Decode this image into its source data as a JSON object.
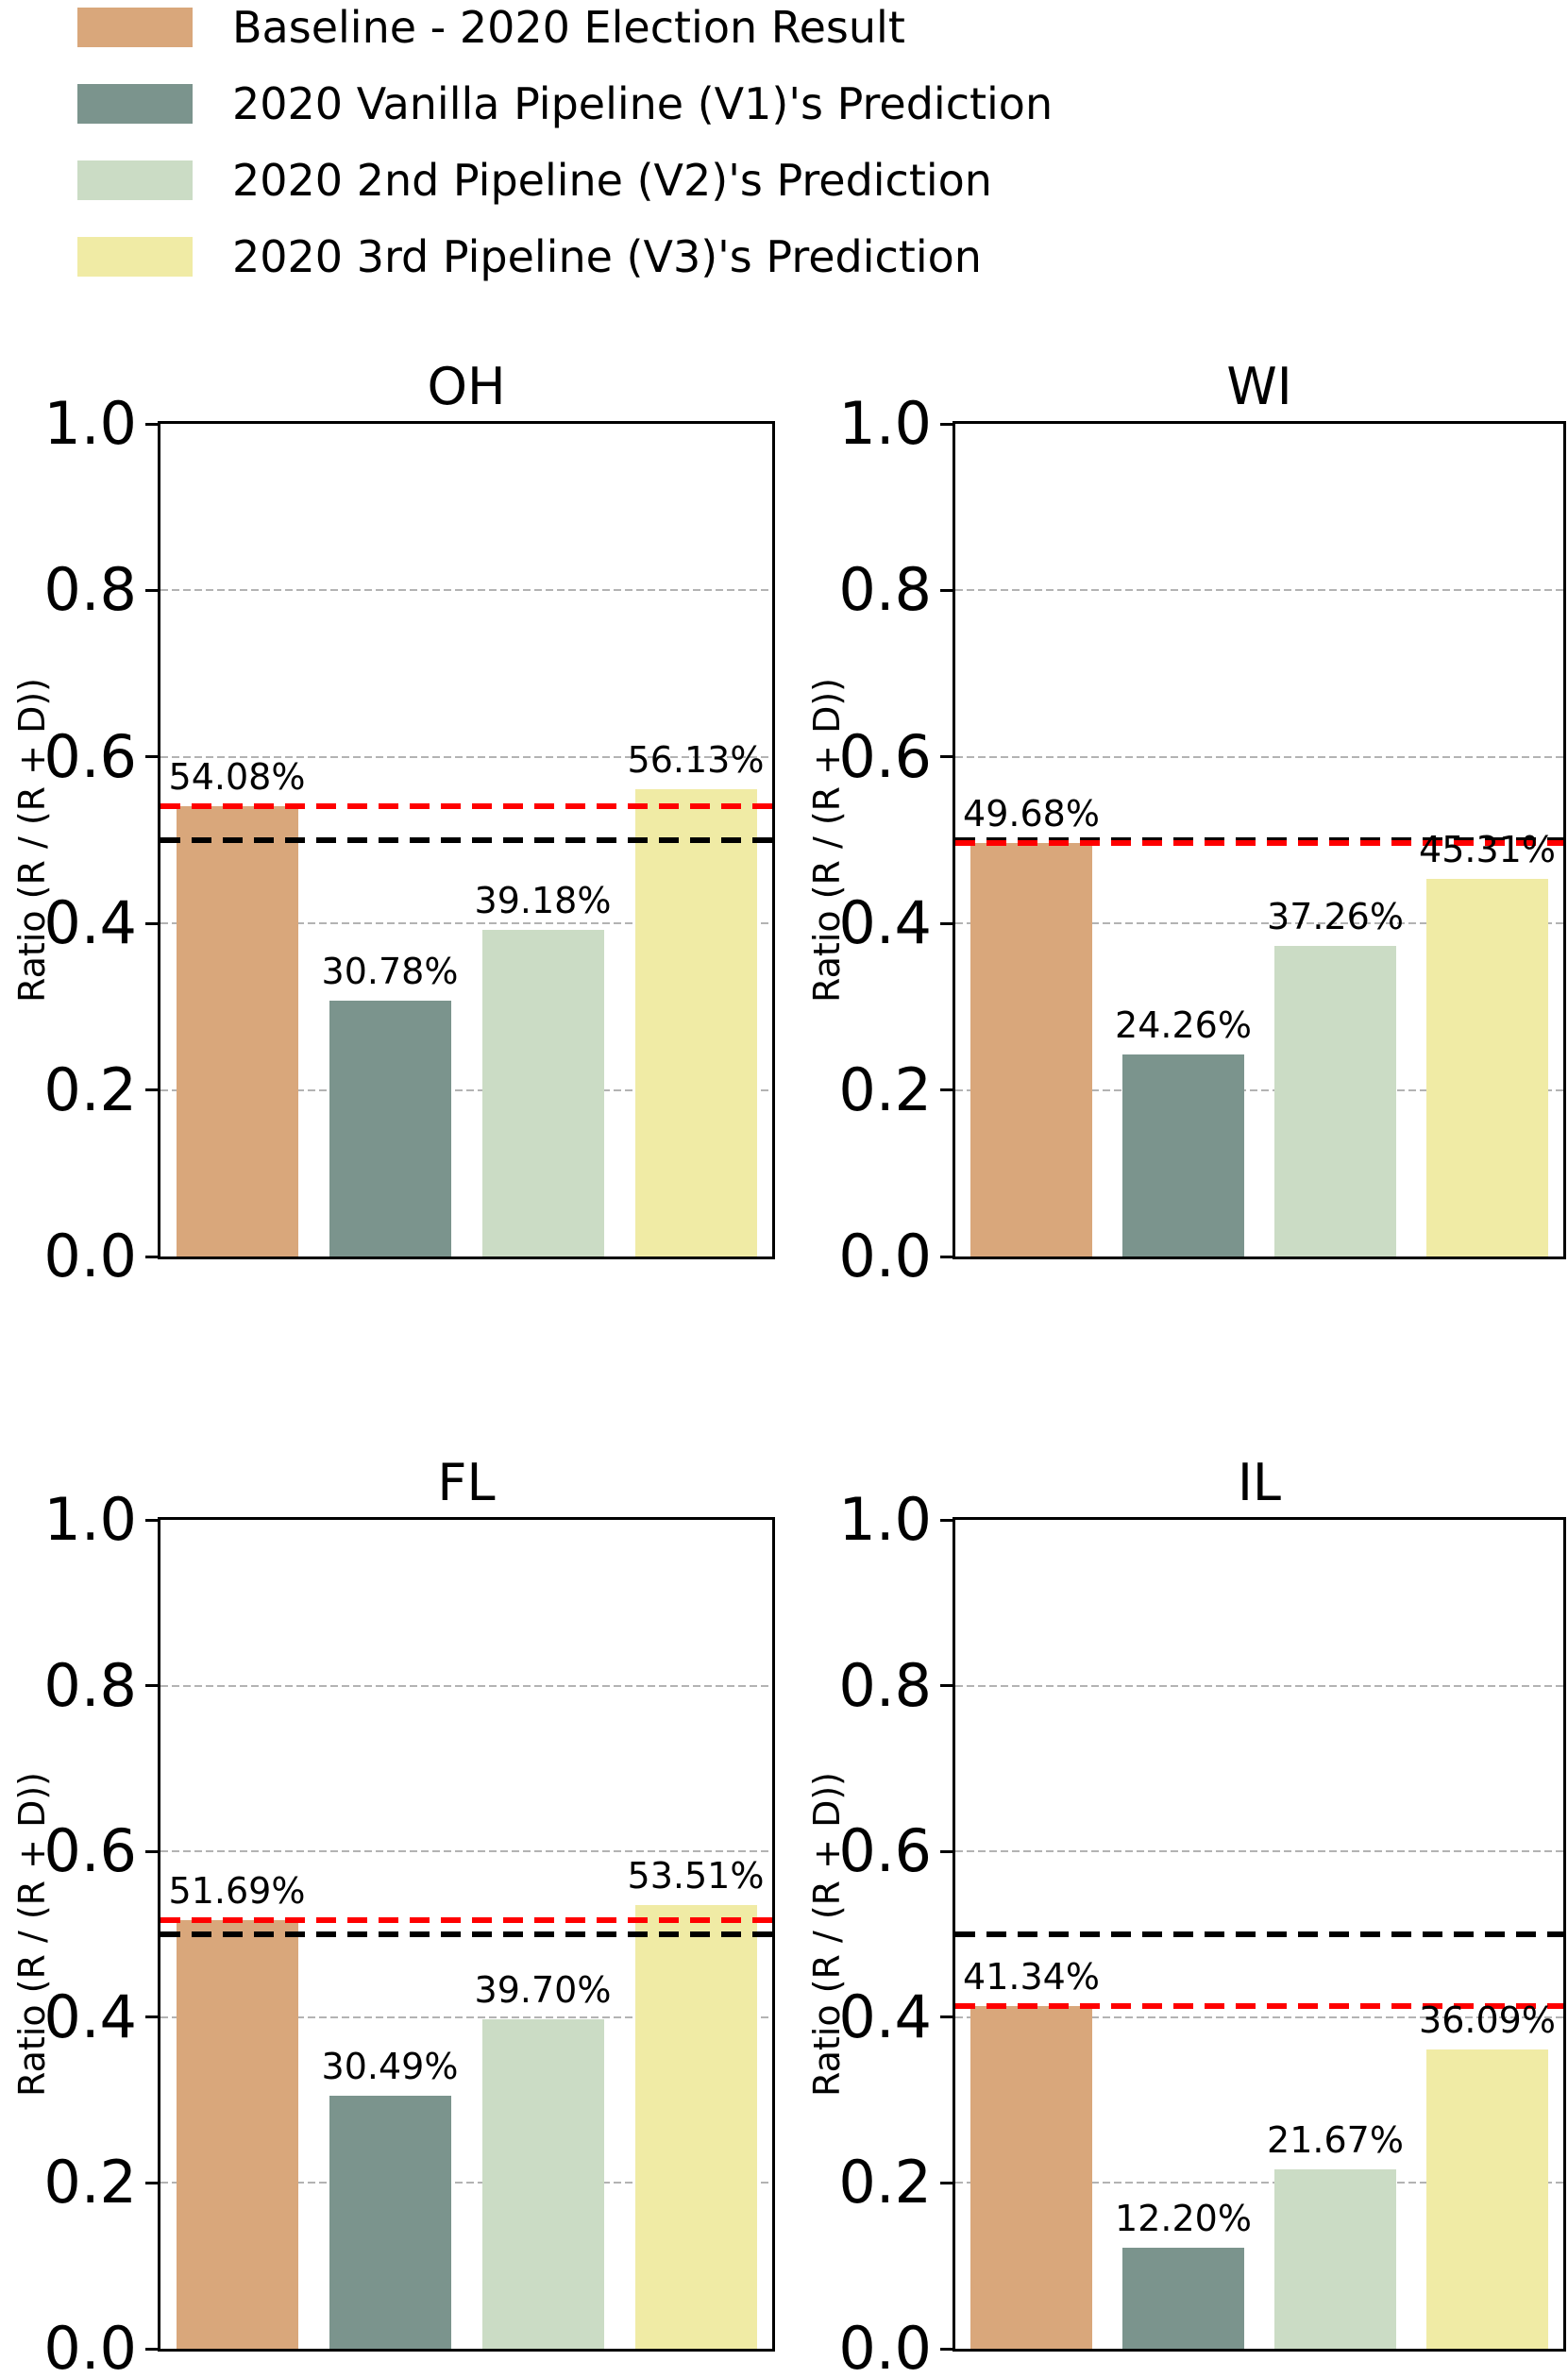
{
  "legend": {
    "items": [
      {
        "label": "Baseline - 2020 Election Result",
        "color": "#d9a77b"
      },
      {
        "label": "2020 Vanilla Pipeline (V1)'s Prediction",
        "color": "#7b948d"
      },
      {
        "label": "2020 2nd Pipeline (V2)'s Prediction",
        "color": "#cbdcc5"
      },
      {
        "label": "2020 3rd Pipeline (V3)'s Prediction",
        "color": "#f0eba5"
      }
    ]
  },
  "axes": {
    "ylabel": "Ratio (R / (R + D))",
    "yticks": [
      "0.0",
      "0.2",
      "0.4",
      "0.6",
      "0.8",
      "1.0"
    ],
    "ytick_values": [
      0.0,
      0.2,
      0.4,
      0.6,
      0.8,
      1.0
    ]
  },
  "colors": {
    "bar_colors": [
      "#d9a77b",
      "#7b948d",
      "#cbdcc5",
      "#f0eba5"
    ],
    "baseline_dashed_line": "#ff0000",
    "half_dashed_line": "#000000",
    "gridline": "#b3b3b3"
  },
  "chart_data": [
    {
      "type": "bar",
      "title": "OH",
      "ylabel": "Ratio (R / (R + D))",
      "ylim": [
        0.0,
        1.0
      ],
      "grid": "dashed horizontal at 0.2, 0.4, 0.6, 0.8",
      "categories": [
        "Baseline - 2020 Election Result",
        "2020 Vanilla Pipeline (V1)'s Prediction",
        "2020 2nd Pipeline (V2)'s Prediction",
        "2020 3rd Pipeline (V3)'s Prediction"
      ],
      "values": [
        0.5408,
        0.3078,
        0.3918,
        0.5613
      ],
      "bar_labels": [
        "54.08%",
        "30.78%",
        "39.18%",
        "56.13%"
      ],
      "red_dashed_line_value": 0.5408,
      "black_dashed_line_value": 0.5
    },
    {
      "type": "bar",
      "title": "WI",
      "ylabel": "Ratio (R / (R + D))",
      "ylim": [
        0.0,
        1.0
      ],
      "grid": "dashed horizontal at 0.2, 0.4, 0.6, 0.8",
      "categories": [
        "Baseline - 2020 Election Result",
        "2020 Vanilla Pipeline (V1)'s Prediction",
        "2020 2nd Pipeline (V2)'s Prediction",
        "2020 3rd Pipeline (V3)'s Prediction"
      ],
      "values": [
        0.4968,
        0.2426,
        0.3726,
        0.4531
      ],
      "bar_labels": [
        "49.68%",
        "24.26%",
        "37.26%",
        "45.31%"
      ],
      "red_dashed_line_value": 0.4968,
      "black_dashed_line_value": 0.5
    },
    {
      "type": "bar",
      "title": "FL",
      "ylabel": "Ratio (R / (R + D))",
      "ylim": [
        0.0,
        1.0
      ],
      "grid": "dashed horizontal at 0.2, 0.4, 0.6, 0.8",
      "categories": [
        "Baseline - 2020 Election Result",
        "2020 Vanilla Pipeline (V1)'s Prediction",
        "2020 2nd Pipeline (V2)'s Prediction",
        "2020 3rd Pipeline (V3)'s Prediction"
      ],
      "values": [
        0.5169,
        0.3049,
        0.397,
        0.5351
      ],
      "bar_labels": [
        "51.69%",
        "30.49%",
        "39.70%",
        "53.51%"
      ],
      "red_dashed_line_value": 0.5169,
      "black_dashed_line_value": 0.5
    },
    {
      "type": "bar",
      "title": "IL",
      "ylabel": "Ratio (R / (R + D))",
      "ylim": [
        0.0,
        1.0
      ],
      "grid": "dashed horizontal at 0.2, 0.4, 0.6, 0.8",
      "categories": [
        "Baseline - 2020 Election Result",
        "2020 Vanilla Pipeline (V1)'s Prediction",
        "2020 2nd Pipeline (V2)'s Prediction",
        "2020 3rd Pipeline (V3)'s Prediction"
      ],
      "values": [
        0.4134,
        0.122,
        0.2167,
        0.3609
      ],
      "bar_labels": [
        "41.34%",
        "12.20%",
        "21.67%",
        "36.09%"
      ],
      "red_dashed_line_value": 0.4134,
      "black_dashed_line_value": 0.5
    }
  ]
}
